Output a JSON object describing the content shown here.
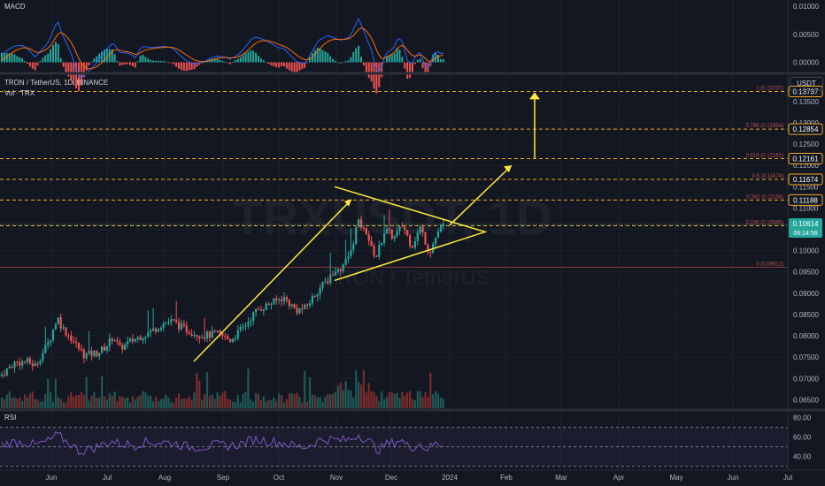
{
  "chart_data": {
    "type": "candlestick",
    "symbol": "TRON / TetherUS, 1D, BINANCE",
    "volume_label": "Vol · TRX",
    "watermark_big": "TRXUSDT, 1D",
    "watermark_small": "TRON / TetherUS",
    "currency": "USDT",
    "price_axis": {
      "ticks": [
        "0.06500",
        "0.07000",
        "0.07500",
        "0.08000",
        "0.08500",
        "0.09000",
        "0.09500",
        "0.10000",
        "0.10500",
        "0.11000",
        "0.11500",
        "0.12000",
        "0.12500",
        "0.13000",
        "0.13500"
      ],
      "ylim": [
        0.063,
        0.141
      ]
    },
    "time_axis": {
      "ticks": [
        "Jun",
        "Jul",
        "Aug",
        "Sep",
        "Oct",
        "Nov",
        "Dec",
        "2024",
        "Feb",
        "Mar",
        "Apr",
        "May",
        "Jun",
        "Jul"
      ]
    },
    "last_price": "0.10614",
    "countdown": "06:14:56",
    "fibonacci": [
      {
        "level": "0",
        "label": "0 (0.09612)",
        "price": 0.09612,
        "tag": ""
      },
      {
        "level": "0.236",
        "label": "0.236 (0.10585)",
        "price": 0.10585,
        "tag": ""
      },
      {
        "level": "0.382",
        "label": "0.382 (0.11188)",
        "price": 0.11188,
        "tag": "0.11188"
      },
      {
        "level": "0.5",
        "label": "0.5 (0.11674)",
        "price": 0.11674,
        "tag": "0.11674"
      },
      {
        "level": "0.618",
        "label": "0.618 (0.12161)",
        "price": 0.12161,
        "tag": "0.12161"
      },
      {
        "level": "0.786",
        "label": "0.786 (0.12854)",
        "price": 0.12854,
        "tag": "0.12854"
      },
      {
        "level": "1",
        "label": "1 (0.13737)",
        "price": 0.13737,
        "tag": "0.13737"
      }
    ],
    "macd": {
      "title": "MACD",
      "ticks": [
        "0.01000",
        "0.00500",
        "0.00000"
      ],
      "ylim": [
        -0.0015,
        0.0105
      ]
    },
    "rsi": {
      "title": "RSI",
      "ticks": [
        "80.00",
        "60.00",
        "40.00"
      ],
      "ylim": [
        28,
        85
      ]
    },
    "colors": {
      "background": "#131722",
      "up": "#26a69a",
      "down": "#ef5350",
      "fib_line": "#f5a623",
      "drawing": "#ffeb3b",
      "macd_line": "#2962ff",
      "signal_line": "#ff6d00",
      "rsi_line": "#7e57c2"
    }
  }
}
